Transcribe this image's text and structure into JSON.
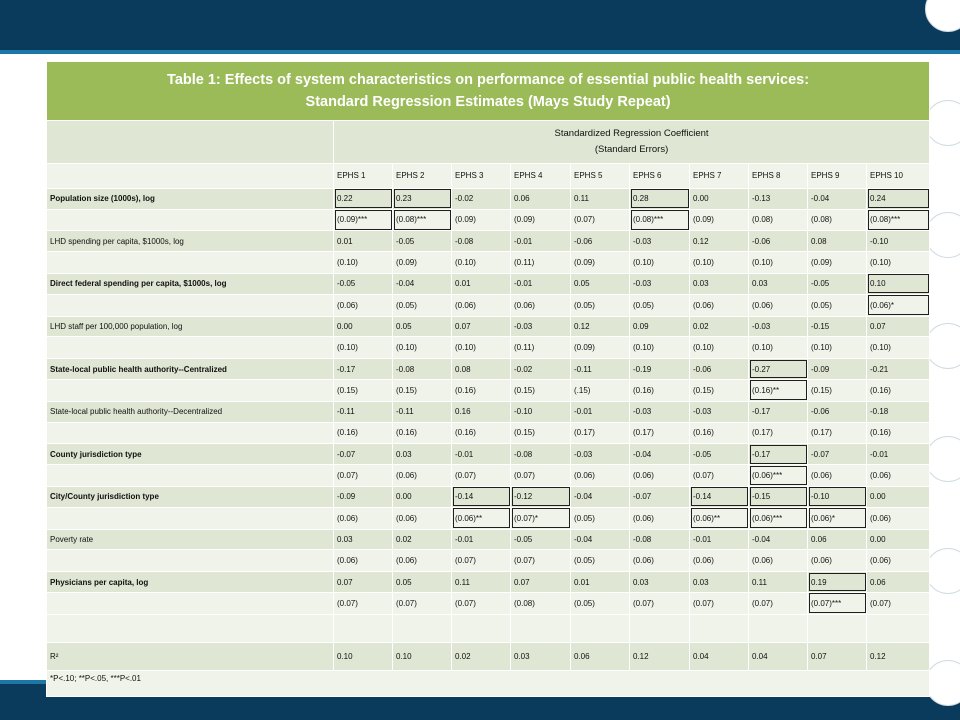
{
  "slide": {
    "title_line1": "Table 1: Effects of system characteristics on performance of essential public health services:",
    "title_line2": "Standard Regression Estimates (Mays Study Repeat)"
  },
  "table": {
    "header_line1": "Standardized Regression Coefficient",
    "header_line2": "(Standard Errors)",
    "columns": [
      "EPHS 1",
      "EPHS 2",
      "EPHS 3",
      "EPHS 4",
      "EPHS 5",
      "EPHS 6",
      "EPHS 7",
      "EPHS 8",
      "EPHS 9",
      "EPHS 10"
    ],
    "rows": [
      {
        "label": "Population size (1000s), log",
        "bold": true,
        "coef": [
          "0.22",
          "0.23",
          "-0.02",
          "0.06",
          "0.11",
          "0.28",
          "0.00",
          "-0.13",
          "-0.04",
          "0.24"
        ],
        "se": [
          "(0.09)***",
          "(0.08)***",
          "(0.09)",
          "(0.09)",
          "(0.07)",
          "(0.08)***",
          "(0.09)",
          "(0.08)",
          "(0.08)",
          "(0.08)***"
        ],
        "boxed": [
          0,
          1,
          5,
          9
        ]
      },
      {
        "label": "LHD spending per capita, $1000s, log",
        "bold": false,
        "coef": [
          "0.01",
          "-0.05",
          "-0.08",
          "-0.01",
          "-0.06",
          "-0.03",
          "0.12",
          "-0.06",
          "0.08",
          "-0.10"
        ],
        "se": [
          "(0.10)",
          "(0.09)",
          "(0.10)",
          "(0.11)",
          "(0.09)",
          "(0.10)",
          "(0.10)",
          "(0.10)",
          "(0.09)",
          "(0.10)"
        ],
        "boxed": []
      },
      {
        "label": "Direct federal spending per capita, $1000s, log",
        "bold": true,
        "coef": [
          "-0.05",
          "-0.04",
          "0.01",
          "-0.01",
          "0.05",
          "-0.03",
          "0.03",
          "0.03",
          "-0.05",
          "0.10"
        ],
        "se": [
          "(0.06)",
          "(0.05)",
          "(0.06)",
          "(0.06)",
          "(0.05)",
          "(0.05)",
          "(0.06)",
          "(0.06)",
          "(0.05)",
          "(0.06)*"
        ],
        "boxed": [
          9
        ]
      },
      {
        "label": "LHD staff per 100,000 population, log",
        "bold": false,
        "coef": [
          "0.00",
          "0.05",
          "0.07",
          "-0.03",
          "0.12",
          "0.09",
          "0.02",
          "-0.03",
          "-0.15",
          "0.07"
        ],
        "se": [
          "(0.10)",
          "(0.10)",
          "(0.10)",
          "(0.11)",
          "(0.09)",
          "(0.10)",
          "(0.10)",
          "(0.10)",
          "(0.10)",
          "(0.10)"
        ],
        "boxed": []
      },
      {
        "label": "State-local public health authority--Centralized",
        "bold": true,
        "coef": [
          "-0.17",
          "-0.08",
          "0.08",
          "-0.02",
          "-0.11",
          "-0.19",
          "-0.06",
          "-0.27",
          "-0.09",
          "-0.21"
        ],
        "se": [
          "(0.15)",
          "(0.15)",
          "(0.16)",
          "(0.15)",
          "(.15)",
          "(0.16)",
          "(0.15)",
          "(0.16)**",
          "(0.15)",
          "(0.16)"
        ],
        "boxed": [
          7
        ]
      },
      {
        "label": "State-local public health authority--Decentralized",
        "bold": false,
        "coef": [
          "-0.11",
          "-0.11",
          "0.16",
          "-0.10",
          "-0.01",
          "-0.03",
          "-0.03",
          "-0.17",
          "-0.06",
          "-0.18"
        ],
        "se": [
          "(0.16)",
          "(0.16)",
          "(0.16)",
          "(0.15)",
          "(0.17)",
          "(0.17)",
          "(0.16)",
          "(0.17)",
          "(0.17)",
          "(0.16)"
        ],
        "boxed": []
      },
      {
        "label": "County jurisdiction type",
        "bold": true,
        "coef": [
          "-0.07",
          "0.03",
          "-0.01",
          "-0.08",
          "-0.03",
          "-0.04",
          "-0.05",
          "-0.17",
          "-0.07",
          "-0.01"
        ],
        "se": [
          "(0.07)",
          "(0.06)",
          "(0.07)",
          "(0.07)",
          "(0.06)",
          "(0.06)",
          "(0.07)",
          "(0.06)***",
          "(0.06)",
          "(0.06)"
        ],
        "boxed": [
          7
        ]
      },
      {
        "label": "City/County jurisdiction type",
        "bold": true,
        "coef": [
          "-0.09",
          "0.00",
          "-0.14",
          "-0.12",
          "-0.04",
          "-0.07",
          "-0.14",
          "-0.15",
          "-0.10",
          "0.00"
        ],
        "se": [
          "(0.06)",
          "(0.06)",
          "(0.06)**",
          "(0.07)*",
          "(0.05)",
          "(0.06)",
          "(0.06)**",
          "(0.06)***",
          "(0.06)*",
          "(0.06)"
        ],
        "boxed": [
          2,
          3,
          6,
          7,
          8
        ]
      },
      {
        "label": "Poverty rate",
        "bold": false,
        "coef": [
          "0.03",
          "0.02",
          "-0.01",
          "-0.05",
          "-0.04",
          "-0.08",
          "-0.01",
          "-0.04",
          "0.06",
          "0.00"
        ],
        "se": [
          "(0.06)",
          "(0.06)",
          "(0.07)",
          "(0.07)",
          "(0.05)",
          "(0.06)",
          "(0.06)",
          "(0.06)",
          "(0.06)",
          "(0.06)"
        ],
        "boxed": []
      },
      {
        "label": "Physicians per capita, log",
        "bold": true,
        "coef": [
          "0.07",
          "0.05",
          "0.11",
          "0.07",
          "0.01",
          "0.03",
          "0.03",
          "0.11",
          "0.19",
          "0.06"
        ],
        "se": [
          "(0.07)",
          "(0.07)",
          "(0.07)",
          "(0.08)",
          "(0.05)",
          "(0.07)",
          "(0.07)",
          "(0.07)",
          "(0.07)***",
          "(0.07)"
        ],
        "boxed": [
          8
        ]
      }
    ],
    "r2_label": "R²",
    "r2_values": [
      "0.10",
      "0.10",
      "0.02",
      "0.03",
      "0.06",
      "0.12",
      "0.04",
      "0.04",
      "0.07",
      "0.12"
    ],
    "footnote": "*P<.10; **P<.05, ***P<.01"
  }
}
